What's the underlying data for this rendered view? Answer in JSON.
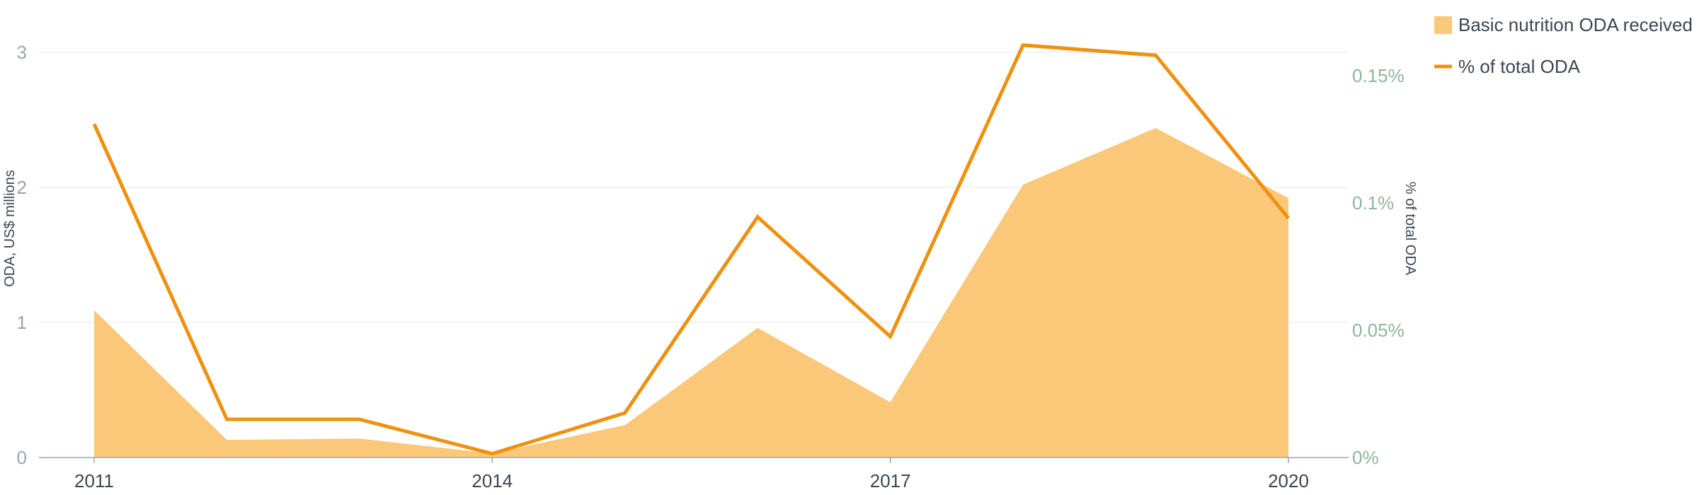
{
  "chart_data": {
    "type": "area",
    "x": [
      2011,
      2012,
      2013,
      2014,
      2015,
      2016,
      2017,
      2018,
      2019,
      2020
    ],
    "x_tick_labels": [
      "2011",
      "2014",
      "2017",
      "2020"
    ],
    "series": [
      {
        "name": "Basic nutrition ODA received",
        "type": "area",
        "axis": "left",
        "color": "#fbc778",
        "values": [
          1.09,
          0.13,
          0.14,
          0.03,
          0.24,
          0.96,
          0.41,
          2.02,
          2.44,
          1.92
        ]
      },
      {
        "name": "% of total ODA",
        "type": "line",
        "axis": "right",
        "color": "#f0900f",
        "values": [
          0.131,
          0.015,
          0.015,
          0.0015,
          0.0175,
          0.0945,
          0.0475,
          0.162,
          0.158,
          0.094
        ]
      }
    ],
    "y_left": {
      "label": "ODA, US$ millions",
      "ylim": [
        0,
        3
      ],
      "ticks": [
        0,
        1,
        2,
        3
      ],
      "tick_labels": [
        "0",
        "1",
        "2",
        "3"
      ]
    },
    "y_right": {
      "label": "% of total ODA",
      "ylim": [
        0,
        0.16
      ],
      "ticks": [
        0,
        0.05,
        0.1,
        0.15
      ],
      "tick_labels": [
        "0%",
        "0.05%",
        "0.1%",
        "0.15%"
      ]
    },
    "grid": true,
    "legend_position": "top-right"
  },
  "legend": {
    "items": [
      {
        "label": "Basic nutrition ODA received",
        "kind": "area",
        "color": "#fbc778"
      },
      {
        "label": "% of total ODA",
        "kind": "line",
        "color": "#f0900f"
      }
    ]
  }
}
